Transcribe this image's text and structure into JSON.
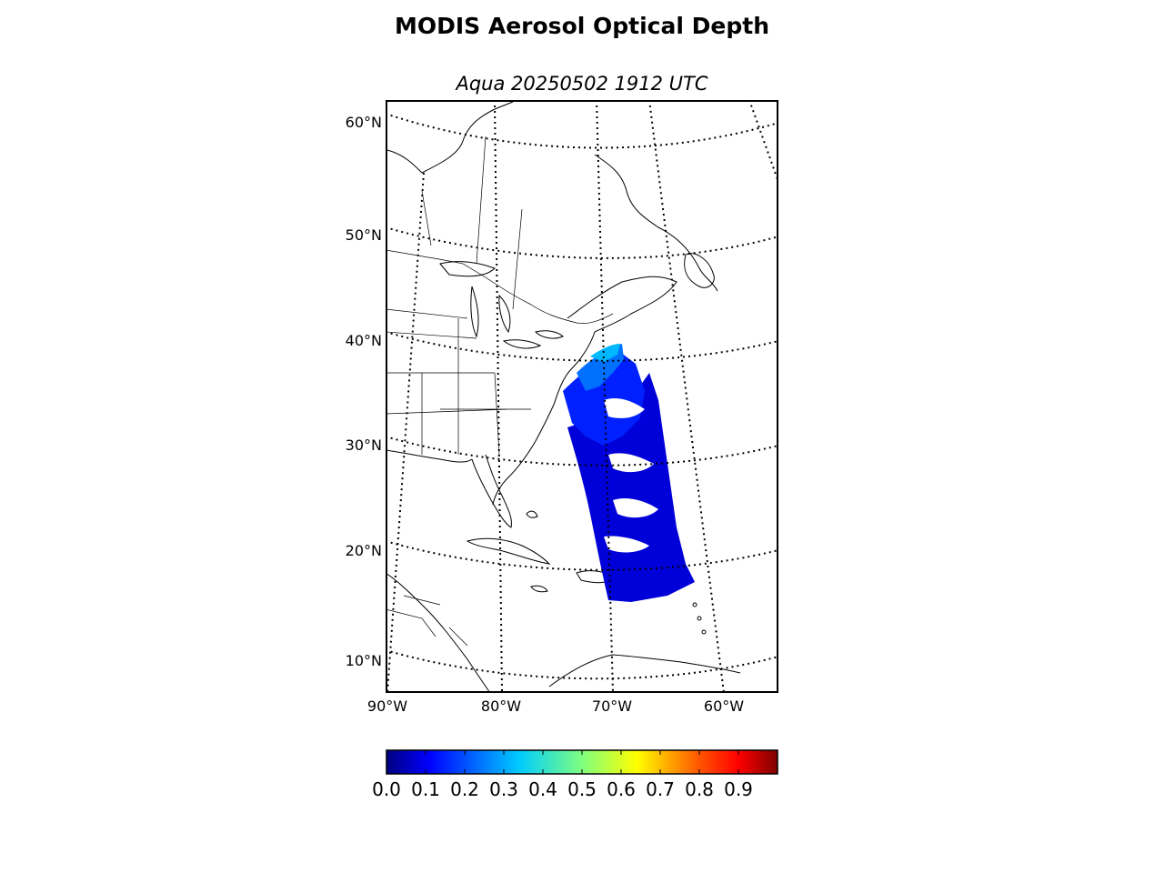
{
  "title": "MODIS Aerosol Optical Depth",
  "subtitle": "Aqua 20250502 1912 UTC",
  "map": {
    "lat_labels": [
      "60°N",
      "50°N",
      "40°N",
      "30°N",
      "20°N",
      "10°N"
    ],
    "lon_labels": [
      "90°W",
      "80°W",
      "70°W",
      "60°W"
    ],
    "graticule_style": "dotted",
    "data_swath_colors": [
      "#0000d8",
      "#0010ff",
      "#0050ff",
      "#0090ff",
      "#00d0ff",
      "#ffffff"
    ]
  },
  "colorbar": {
    "colormap": "jet",
    "min": 0.0,
    "max": 1.0,
    "tick_labels": [
      "0.0",
      "0.1",
      "0.2",
      "0.3",
      "0.4",
      "0.5",
      "0.6",
      "0.7",
      "0.8",
      "0.9"
    ],
    "colors": [
      "#00007f",
      "#0000ff",
      "#007fff",
      "#00ffff",
      "#7fff7f",
      "#ffff00",
      "#ff7f00",
      "#ff0000",
      "#7f0000"
    ]
  }
}
